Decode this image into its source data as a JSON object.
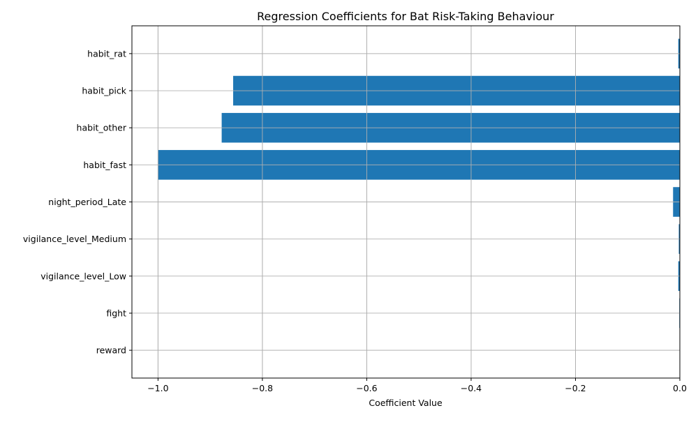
{
  "chart_data": {
    "type": "bar",
    "orientation": "horizontal",
    "title": "Regression Coefficients for Bat Risk-Taking Behaviour",
    "xlabel": "Coefficient Value",
    "ylabel": "",
    "categories": [
      "reward",
      "fight",
      "vigilance_level_Low",
      "vigilance_level_Medium",
      "night_period_Late",
      "habit_fast",
      "habit_other",
      "habit_pick",
      "habit_rat"
    ],
    "values": [
      0.0,
      -0.001,
      -0.003,
      -0.002,
      -0.013,
      -1.0,
      -0.878,
      -0.856,
      -0.003
    ],
    "xlim": [
      -1.05,
      0.0
    ],
    "xticks": [
      -1.0,
      -0.8,
      -0.6,
      -0.4,
      -0.2,
      0.0
    ],
    "xtick_labels": [
      "−1.0",
      "−0.8",
      "−0.6",
      "−0.4",
      "−0.2",
      "0.0"
    ],
    "grid": true,
    "bar_color": "#1f77b4"
  }
}
